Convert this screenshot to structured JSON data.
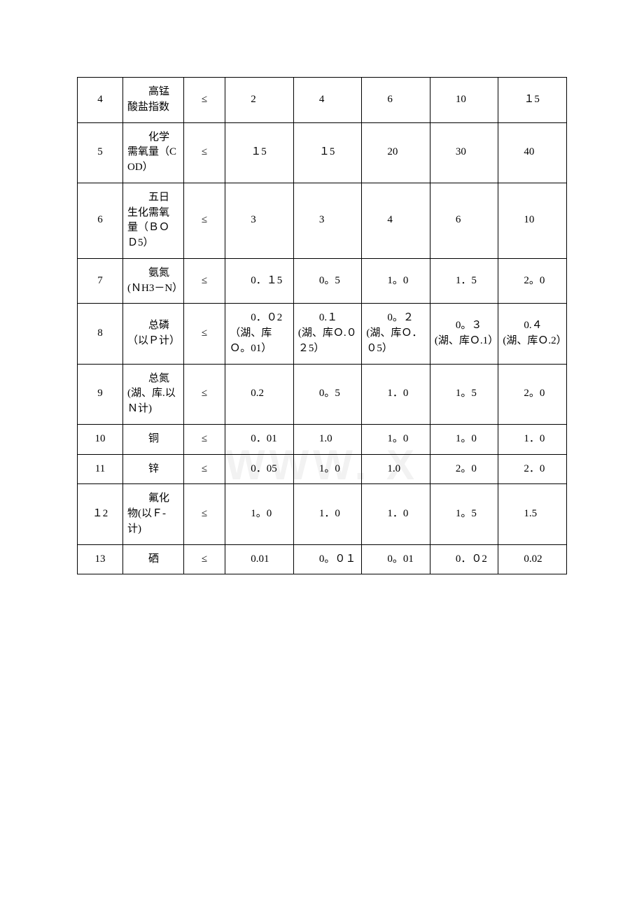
{
  "watermark": "WWW.    X",
  "table": {
    "columns": [
      "num",
      "name",
      "op",
      "v1",
      "v2",
      "v3",
      "v4",
      "v5"
    ],
    "rows": [
      {
        "num": "4",
        "name": "高锰酸盐指数",
        "op": "≤",
        "v1": "2",
        "v2": "4",
        "v3": "6",
        "v4": "10",
        "v5": "１5"
      },
      {
        "num": "5",
        "name": "化学需氧量（COD）",
        "op": "≤",
        "v1": "１5",
        "v2": "１5",
        "v3": "20",
        "v4": "30",
        "v5": "40"
      },
      {
        "num": "6",
        "name": "五日生化需氧量（ＢＯＤ5）",
        "op": "≤",
        "v1": "3",
        "v2": "3",
        "v3": "4",
        "v4": "6",
        "v5": "10"
      },
      {
        "num": "7",
        "name": "氨氮(ＮH3－N）",
        "op": "≤",
        "v1": "0．１5",
        "v2": "0。5",
        "v3": "1。0",
        "v4": "1．5",
        "v5": "2。0"
      },
      {
        "num": "8",
        "name": "总磷（以Ｐ计）",
        "op": "≤",
        "v1": "0．０2（湖、库Ｏ。01）",
        "v2": "0.１(湖、库Ｏ.０２5）",
        "v3": "0。２(湖、库Ｏ．０5）",
        "v4": "0。３(湖、库Ｏ.1）",
        "v5": "0.４　(湖、库Ｏ.2）"
      },
      {
        "num": "9",
        "name": "总氮(湖、库.以Ｎ计)",
        "op": "≤",
        "v1": "0.2",
        "v2": "0。5",
        "v3": "1．0",
        "v4": "1。5",
        "v5": "2。0"
      },
      {
        "num": "10",
        "name": "铜",
        "op": "≤",
        "v1": "0．01",
        "v2": "1.0",
        "v3": "1。0",
        "v4": "1。0",
        "v5": "1．0"
      },
      {
        "num": "11",
        "name": "锌",
        "op": "≤",
        "v1": "0．05",
        "v2": "1。0",
        "v3": "1.0",
        "v4": "2。0",
        "v5": "2．0"
      },
      {
        "num": "１2",
        "name": "氟化物(以Ｆ-计)",
        "op": "≤",
        "v1": "1。0",
        "v2": "1．0",
        "v3": "1．0",
        "v4": "1。5",
        "v5": "1.5"
      },
      {
        "num": "13",
        "name": "硒",
        "op": "≤",
        "v1": "0.01",
        "v2": "0。０１",
        "v3": "0。01",
        "v4": "0．０2",
        "v5": "0.02"
      }
    ]
  }
}
